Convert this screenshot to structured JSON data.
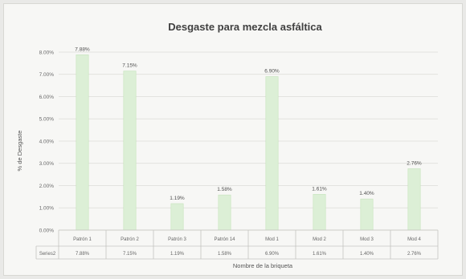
{
  "chart_data": {
    "type": "bar",
    "title": "Desgaste para mezcla asfáltica",
    "xlabel": "Nombre de la briqueta",
    "ylabel": "% de Desgaste",
    "ylim": [
      0,
      8
    ],
    "yticks": [
      "0.00%",
      "1.00%",
      "2.00%",
      "3.00%",
      "4.00%",
      "5.00%",
      "6.00%",
      "7.00%",
      "8.00%"
    ],
    "categories": [
      "Patrón 1",
      "Patrón 2",
      "Patrón 3",
      "Patrón 14",
      "Mod 1",
      "Mod 2",
      "Mod 3",
      "Mod 4"
    ],
    "series": [
      {
        "name": "Series2",
        "values": [
          7.88,
          7.15,
          1.19,
          1.58,
          6.9,
          1.61,
          1.4,
          2.76
        ],
        "labels": [
          "7.88%",
          "7.15%",
          "1.19%",
          "1.58%",
          "6.90%",
          "1.61%",
          "1.40%",
          "2.76%"
        ]
      }
    ],
    "grid": true,
    "legend": "data-table",
    "bar_color": "#dcefd6",
    "bar_edge": "#c6e3bd"
  }
}
